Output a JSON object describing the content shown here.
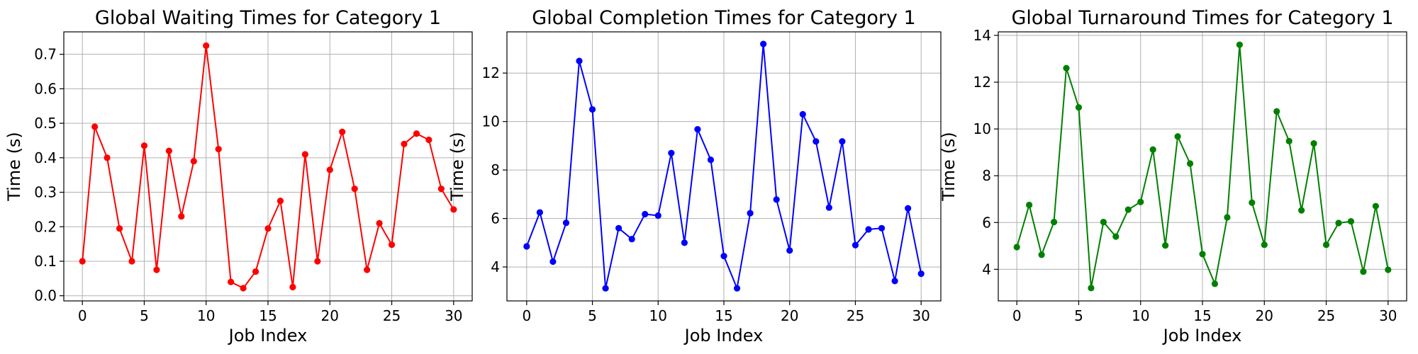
{
  "chart_data": [
    {
      "type": "line",
      "title": "Global Waiting Times for Category 1",
      "xlabel": "Job Index",
      "ylabel": "Time (s)",
      "xlim": [
        -1.5,
        31.5
      ],
      "ylim": [
        -0.015,
        0.765
      ],
      "xticks": [
        0,
        5,
        10,
        15,
        20,
        25,
        30
      ],
      "yticks": [
        0.0,
        0.1,
        0.2,
        0.3,
        0.4,
        0.5,
        0.6,
        0.7
      ],
      "grid": true,
      "color": "#ff0000",
      "x": [
        0,
        1,
        2,
        3,
        4,
        5,
        6,
        7,
        8,
        9,
        10,
        11,
        12,
        13,
        14,
        15,
        16,
        17,
        18,
        19,
        20,
        21,
        22,
        23,
        24,
        25,
        26,
        27,
        28,
        29,
        30
      ],
      "y": [
        0.1,
        0.49,
        0.4,
        0.195,
        0.1,
        0.435,
        0.075,
        0.42,
        0.23,
        0.39,
        0.725,
        0.425,
        0.04,
        0.022,
        0.07,
        0.195,
        0.275,
        0.025,
        0.41,
        0.1,
        0.365,
        0.475,
        0.31,
        0.075,
        0.21,
        0.148,
        0.44,
        0.47,
        0.452,
        0.31,
        0.25
      ]
    },
    {
      "type": "line",
      "title": "Global Completion Times for Category 1",
      "xlabel": "Job Index",
      "ylabel": "Time (s)",
      "xlim": [
        -1.5,
        31.5
      ],
      "ylim": [
        2.6,
        13.7
      ],
      "xticks": [
        0,
        5,
        10,
        15,
        20,
        25,
        30
      ],
      "yticks": [
        4,
        6,
        8,
        10,
        12
      ],
      "grid": true,
      "color": "#0000ff",
      "x": [
        0,
        1,
        2,
        3,
        4,
        5,
        6,
        7,
        8,
        9,
        10,
        11,
        12,
        13,
        14,
        15,
        16,
        17,
        18,
        19,
        20,
        21,
        22,
        23,
        24,
        25,
        26,
        27,
        28,
        29,
        30
      ],
      "y": [
        4.85,
        6.25,
        4.22,
        5.82,
        12.5,
        10.5,
        3.12,
        5.6,
        5.15,
        6.18,
        6.12,
        8.7,
        5.0,
        9.68,
        8.42,
        4.45,
        3.12,
        6.22,
        13.2,
        6.78,
        4.68,
        10.3,
        9.18,
        6.45,
        9.18,
        4.9,
        5.55,
        5.6,
        3.42,
        6.42,
        3.72
      ]
    },
    {
      "type": "line",
      "title": "Global Turnaround Times for Category 1",
      "xlabel": "Job Index",
      "ylabel": "Time (s)",
      "xlim": [
        -1.5,
        31.5
      ],
      "ylim": [
        2.65,
        14.15
      ],
      "xticks": [
        0,
        5,
        10,
        15,
        20,
        25,
        30
      ],
      "yticks": [
        4,
        6,
        8,
        10,
        12,
        14
      ],
      "grid": true,
      "color": "#008000",
      "x": [
        0,
        1,
        2,
        3,
        4,
        5,
        6,
        7,
        8,
        9,
        10,
        11,
        12,
        13,
        14,
        15,
        16,
        17,
        18,
        19,
        20,
        21,
        22,
        23,
        24,
        25,
        26,
        27,
        28,
        29,
        30
      ],
      "y": [
        4.95,
        6.75,
        4.62,
        6.02,
        12.6,
        10.92,
        3.2,
        6.02,
        5.4,
        6.55,
        6.88,
        9.12,
        5.02,
        9.68,
        8.52,
        4.65,
        3.38,
        6.22,
        13.6,
        6.85,
        5.05,
        10.75,
        9.48,
        6.52,
        9.38,
        5.05,
        5.98,
        6.05,
        3.9,
        6.7,
        3.98
      ]
    }
  ]
}
